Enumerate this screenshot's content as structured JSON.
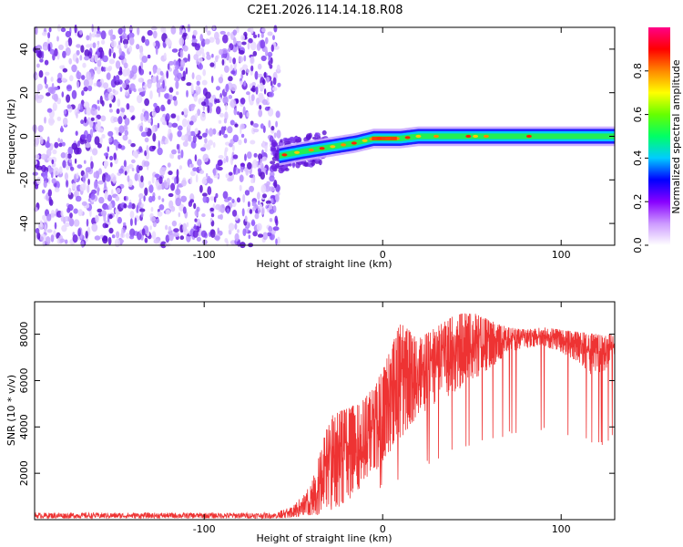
{
  "title": "C2E1.2026.114.14.18.R08",
  "chart_data": [
    {
      "type": "heatmap",
      "xlabel": "Height of straight line (km)",
      "ylabel": "Frequency (Hz)",
      "xlim": [
        -195,
        130
      ],
      "ylim": [
        -50,
        50
      ],
      "xticks": [
        -100,
        0,
        100
      ],
      "xtick_labels": [
        "-100",
        "0",
        "100"
      ],
      "yticks": [
        -40,
        -20,
        0,
        20,
        40
      ],
      "ytick_labels": [
        "-40",
        "-20",
        "0",
        "20",
        "40"
      ],
      "noise_region_x": [
        -195,
        -58
      ],
      "signal_track": [
        {
          "x": -58,
          "y": -9
        },
        {
          "x": -45,
          "y": -7
        },
        {
          "x": -30,
          "y": -5
        },
        {
          "x": -15,
          "y": -3
        },
        {
          "x": -5,
          "y": -1
        },
        {
          "x": 10,
          "y": -1
        },
        {
          "x": 20,
          "y": 0
        },
        {
          "x": 60,
          "y": 0
        },
        {
          "x": 130,
          "y": 0
        }
      ],
      "colorbar": {
        "label": "Normalized spectral amplitude",
        "range": [
          0,
          1
        ],
        "ticks": [
          0.0,
          0.2,
          0.4,
          0.6,
          0.8
        ],
        "tick_labels": [
          "0.0",
          "0.2",
          "0.4",
          "0.6",
          "0.8"
        ],
        "colors": [
          "#ffffff",
          "#cc99ff",
          "#8800ff",
          "#0000ff",
          "#00ccff",
          "#00ff66",
          "#66ff00",
          "#ffff00",
          "#ff8800",
          "#ff0000",
          "#ff0088"
        ]
      }
    },
    {
      "type": "line",
      "xlabel": "Height of straight line (km)",
      "ylabel": "SNR (10 * v/v)",
      "xlim": [
        -195,
        130
      ],
      "ylim": [
        0,
        9400
      ],
      "xticks": [
        -100,
        0,
        100
      ],
      "xtick_labels": [
        "-100",
        "0",
        "100"
      ],
      "yticks": [
        2000,
        4000,
        6000,
        8000
      ],
      "ytick_labels": [
        "2000",
        "4000",
        "6000",
        "8000"
      ],
      "color": "#ee3333",
      "envelope": [
        {
          "x": -195,
          "low": 50,
          "high": 300
        },
        {
          "x": -60,
          "low": 50,
          "high": 300
        },
        {
          "x": -50,
          "low": 80,
          "high": 600
        },
        {
          "x": -40,
          "low": 200,
          "high": 1500
        },
        {
          "x": -30,
          "low": 400,
          "high": 4500
        },
        {
          "x": -20,
          "low": 800,
          "high": 4800
        },
        {
          "x": -10,
          "low": 1500,
          "high": 5200
        },
        {
          "x": 0,
          "low": 2500,
          "high": 6500
        },
        {
          "x": 10,
          "low": 3500,
          "high": 8500
        },
        {
          "x": 20,
          "low": 4500,
          "high": 7800
        },
        {
          "x": 30,
          "low": 5000,
          "high": 8300
        },
        {
          "x": 40,
          "low": 5500,
          "high": 8800
        },
        {
          "x": 50,
          "low": 6000,
          "high": 9000
        },
        {
          "x": 60,
          "low": 6500,
          "high": 8600
        },
        {
          "x": 70,
          "low": 7200,
          "high": 8300
        },
        {
          "x": 80,
          "low": 7400,
          "high": 8200
        },
        {
          "x": 90,
          "low": 7500,
          "high": 8300
        },
        {
          "x": 100,
          "low": 7200,
          "high": 8200
        },
        {
          "x": 110,
          "low": 6800,
          "high": 8100
        },
        {
          "x": 120,
          "low": 6000,
          "high": 8000
        },
        {
          "x": 130,
          "low": 7000,
          "high": 8000
        }
      ]
    }
  ]
}
